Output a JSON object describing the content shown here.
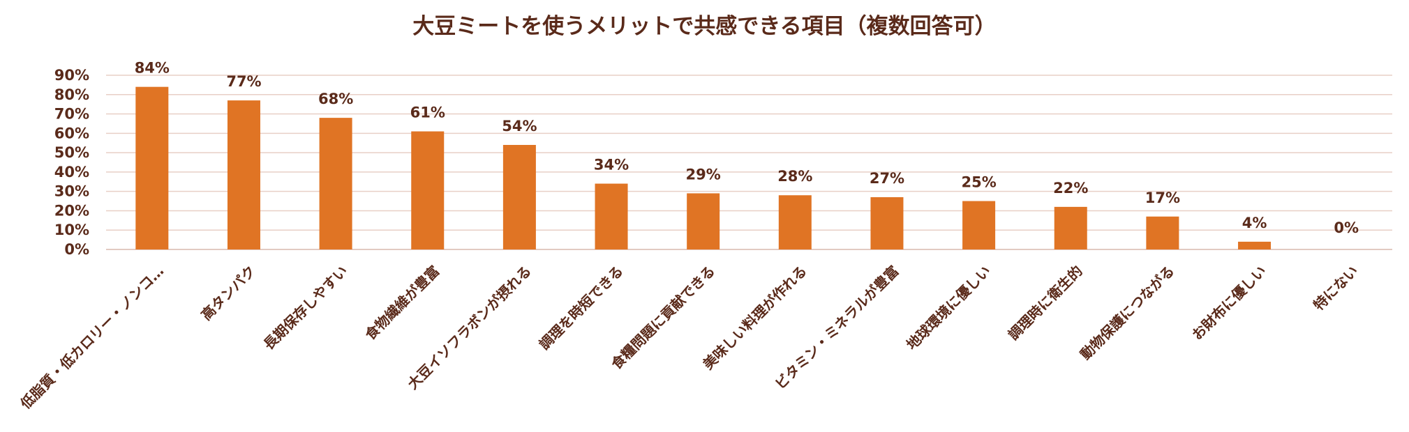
{
  "chart_data": {
    "type": "bar",
    "title": "大豆ミートを使うメリットで共感できる項目（複数回答可）",
    "categories": [
      "低脂質・低カロリー・ノンコ…",
      "高タンパク",
      "長期保存しやすい",
      "食物繊維が豊富",
      "大豆イソフラボンが摂れる",
      "調理を時短できる",
      "食糧問題に貢献できる",
      "美味しい料理が作れる",
      "ビタミン・ミネラルが豊富",
      "地球環境に優しい",
      "調理時に衛生的",
      "動物保護につながる",
      "お財布に優しい",
      "特にない"
    ],
    "values": [
      84,
      77,
      68,
      61,
      54,
      34,
      29,
      28,
      27,
      25,
      22,
      17,
      4,
      0
    ],
    "value_labels": [
      "84%",
      "77%",
      "68%",
      "61%",
      "54%",
      "34%",
      "29%",
      "28%",
      "27%",
      "25%",
      "22%",
      "17%",
      "4%",
      "0%"
    ],
    "y_ticks": [
      "0%",
      "10%",
      "20%",
      "30%",
      "40%",
      "50%",
      "60%",
      "70%",
      "80%",
      "90%"
    ],
    "ylim": [
      0,
      90
    ],
    "grid": true,
    "legend": "none",
    "colors": {
      "bar": "#e07424",
      "text": "#5a2a1a",
      "grid": "#e8cfc6"
    }
  }
}
